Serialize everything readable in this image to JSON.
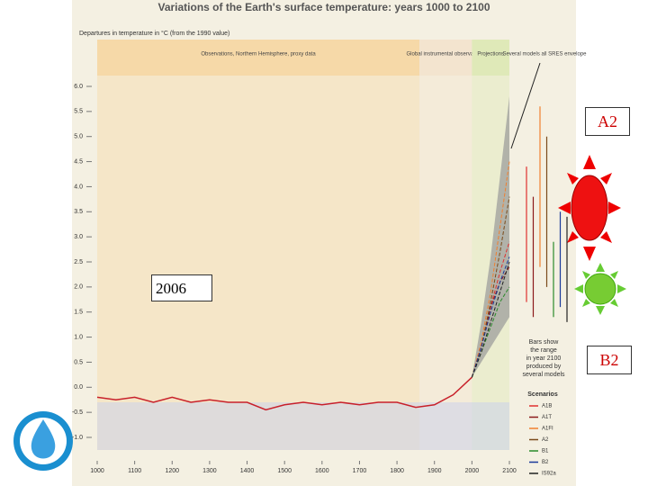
{
  "chart_data": {
    "type": "line",
    "title": "Variations of the Earth's surface temperature: years 1000 to 2100",
    "y_label": "Departures in temperature in °C (from the 1990 value)",
    "xlim": [
      1000,
      2100
    ],
    "xticks": [
      1000,
      1100,
      1200,
      1300,
      1400,
      1500,
      1600,
      1700,
      1800,
      1900,
      2000,
      2100
    ],
    "ylim": [
      -1.0,
      6.0
    ],
    "yticks": [
      {
        "value": -1,
        "label": "-1.0"
      },
      -0.5,
      {
        "value": 0,
        "label": "0.0"
      },
      0.5,
      {
        "value": 1,
        "label": "1.0"
      },
      1.5,
      {
        "value": 2,
        "label": "2.0"
      },
      2.5,
      {
        "value": 3,
        "label": "3.0"
      },
      3.5,
      {
        "value": 4,
        "label": "4.0"
      },
      4.5,
      {
        "value": 5,
        "label": "5.0"
      },
      5.5,
      {
        "value": 6,
        "label": "6.0"
      }
    ],
    "regions": [
      {
        "label": "Observations, Northern Hemisphere, proxy data",
        "from": 1000,
        "to": 1860,
        "color": "#f6d9a8"
      },
      {
        "label": "Global instrumental observations",
        "from": 1860,
        "to": 2000,
        "color": "#f3e4cf"
      },
      {
        "label": "Projections",
        "from": 2000,
        "to": 2100,
        "color": "#dfe9b8"
      }
    ],
    "envelope_label": "Several models all SRES envelope",
    "observations": {
      "color": "#c8202a",
      "x": [
        1000,
        1050,
        1100,
        1150,
        1200,
        1250,
        1300,
        1350,
        1400,
        1450,
        1500,
        1550,
        1600,
        1650,
        1700,
        1750,
        1800,
        1850,
        1900,
        1950,
        2000
      ],
      "values": [
        -0.2,
        -0.25,
        -0.2,
        -0.3,
        -0.2,
        -0.3,
        -0.25,
        -0.3,
        -0.3,
        -0.45,
        -0.35,
        -0.3,
        -0.35,
        -0.3,
        -0.35,
        -0.3,
        -0.3,
        -0.4,
        -0.35,
        -0.15,
        0.2
      ]
    },
    "envelope": {
      "x": [
        2000,
        2025,
        2050,
        2075,
        2100
      ],
      "low": [
        0.2,
        0.5,
        0.8,
        1.1,
        1.4
      ],
      "high": [
        0.2,
        1.3,
        2.6,
        4.2,
        5.8
      ]
    },
    "projection_x": [
      2000,
      2025,
      2050,
      2075,
      2100
    ],
    "legend_title": "Scenarios",
    "series": [
      {
        "name": "A1B",
        "color": "#e03030",
        "values": [
          0.2,
          0.8,
          1.6,
          2.3,
          2.9
        ]
      },
      {
        "name": "A1T",
        "color": "#8b1a1a",
        "values": [
          0.2,
          0.8,
          1.6,
          2.1,
          2.4
        ]
      },
      {
        "name": "A1FI",
        "color": "#f08030",
        "values": [
          0.2,
          0.9,
          1.9,
          3.2,
          4.5
        ]
      },
      {
        "name": "A2",
        "color": "#7a4a1a",
        "values": [
          0.2,
          0.8,
          1.7,
          2.7,
          3.8
        ]
      },
      {
        "name": "B1",
        "color": "#2a8a2a",
        "values": [
          0.2,
          0.7,
          1.2,
          1.7,
          2.0
        ]
      },
      {
        "name": "B2",
        "color": "#1a3a9a",
        "values": [
          0.2,
          0.8,
          1.5,
          2.1,
          2.6
        ]
      },
      {
        "name": "IS92a",
        "color": "#222222",
        "values": [
          0.2,
          0.7,
          1.3,
          1.9,
          2.5
        ]
      }
    ],
    "bars": [
      {
        "low": 1.7,
        "high": 4.4
      },
      {
        "low": 1.4,
        "high": 3.8
      },
      {
        "low": 2.4,
        "high": 5.6
      },
      {
        "low": 2.0,
        "high": 5.0
      },
      {
        "low": 1.4,
        "high": 2.9
      },
      {
        "low": 1.6,
        "high": 3.5
      },
      {
        "low": 1.3,
        "high": 3.4
      }
    ],
    "bars_note": "Bars show the range in year 2100 produced by several models"
  },
  "slide": {
    "label_a2": "A2",
    "label_b2": "B2",
    "year_box": "2006"
  }
}
